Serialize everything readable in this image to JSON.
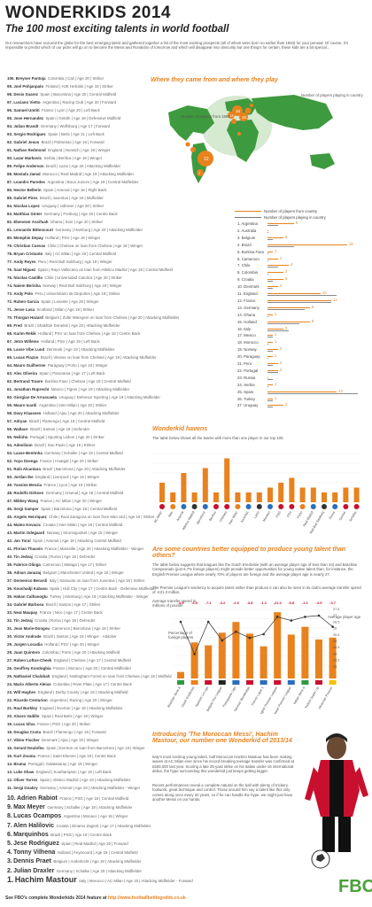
{
  "header": {
    "title": "WONDERKIDS 2014",
    "subtitle": "The 100 most exciting talents in world football",
    "intro": "Our researchers have scoured the globe for the best emerging talent and gathered together a list of the most exciting prospects (all of whom were born no earlier than 1993) for your perusal. Of course, it's impossible to predict which of our picks will go on to become the Messi and Ronaldos of tomorrow and which will disappear into obscurity but one thing's for certain, these kids are a bit special..."
  },
  "ranking": [
    {
      "rank": "100.",
      "name": "Breyner Pantoja",
      "det": "Colombia | Cali | Age 20 | Striker"
    },
    {
      "rank": "99.",
      "name": "Joel Pohjanpalo",
      "det": "Finland | HJK Helsinki | Age 19 | Striker"
    },
    {
      "rank": "98.",
      "name": "Denis Suarez",
      "det": "Spain | Barcelona | Age 20 | Central Midfield"
    },
    {
      "rank": "97.",
      "name": "Luciano Vietto",
      "det": "Argentina | Racing Club | Age 20 | Forward"
    },
    {
      "rank": "96.",
      "name": "Samuel Umtiti",
      "det": "France | Lyon | Age 20 | Left Back"
    },
    {
      "rank": "95.",
      "name": "Jose Hernandez",
      "det": "Spain | Getafe | Age 19 | Defensive Midfield"
    },
    {
      "rank": "94.",
      "name": "Julian Brandt",
      "det": "Germany | Wolfsburg | Age 17 | Forward"
    },
    {
      "rank": "93.",
      "name": "Sergio Rodriguez",
      "det": "Spain | Betis | Age 21 | Left Back"
    },
    {
      "rank": "92.",
      "name": "Gabriel Jesus",
      "det": "Brazil | Palmeiras | Age 16 | Forward"
    },
    {
      "rank": "91.",
      "name": "Nathan Redmond",
      "det": "England | Norwich | Age 19 | Winger"
    },
    {
      "rank": "90.",
      "name": "Lazar Markovic",
      "det": "Serbia | Benfica | Age 19 | Winger"
    },
    {
      "rank": "89.",
      "name": "Felipe Anderson",
      "det": "Brazil | Lazio | Age 20 | Attacking Midfielder"
    },
    {
      "rank": "88.",
      "name": "Mostafa Jamal",
      "det": "Morocco | Real Madrid | Age 19 | Attacking Midfielder"
    },
    {
      "rank": "87.",
      "name": "Leandro Paredes",
      "det": "Argentina | Boca Juniors | Age 19 | Central Midfielder"
    },
    {
      "rank": "86.",
      "name": "Hector Bellerin",
      "det": "Spain | Arsenal | Age 18 | Right Back"
    },
    {
      "rank": "85.",
      "name": "Gabriel Pires",
      "det": "Brazil | Juventus | Age 19 | Midfielder"
    },
    {
      "rank": "84.",
      "name": "Nicolas Lopez",
      "det": "Uruguay | Udinese | Age 20 | Striker"
    },
    {
      "rank": "83.",
      "name": "Matthias Ginter",
      "det": "Germany | Freiburg | Age 19 | Centre Back"
    },
    {
      "rank": "82.",
      "name": "Ebenezer Assifuah",
      "det": "Ghana | Sion | Age 20 | Striker"
    },
    {
      "rank": "81.",
      "name": "Leonardo Bittencourt",
      "det": "Germany | Hamburg | Age 20 | Attacking Midfielder"
    },
    {
      "rank": "80.",
      "name": "Memphis Depay",
      "det": "Holland | PSV | Age 19 | Winger"
    },
    {
      "rank": "79.",
      "name": "Christian Cuevas",
      "det": "Chile | Chelsea on loan from Chelsea | Age 18 | Winger"
    },
    {
      "rank": "78.",
      "name": "Bryan Cristante",
      "det": "Italy | AC Milan | Age 19 | Central Midfield"
    },
    {
      "rank": "77.",
      "name": "Andy Reyes",
      "det": "Peru | Real Bull Salzburg | Age 19 | Winger"
    },
    {
      "rank": "76.",
      "name": "Saul Niguez",
      "det": "Spain | Rayo Vallecano on loan from Atletico Madrid | Age 19 | Central Midfield"
    },
    {
      "rank": "75.",
      "name": "Nicolas Castillo",
      "det": "Chile | Universidad Catolica | Age 20 | Striker"
    },
    {
      "rank": "74.",
      "name": "Naiem Berisha",
      "det": "Norway | Real Bull Salzburg | Age 19 | Winger"
    },
    {
      "rank": "73.",
      "name": "Andy Polo",
      "det": "Peru | Universitario de Deportes | Age 19 | Striker"
    },
    {
      "rank": "72.",
      "name": "Ruben Garcia",
      "det": "Spain | Levante | Age 20 | Winger"
    },
    {
      "rank": "71.",
      "name": "Jesse Lusa",
      "det": "Scotland | Milan | Age 19 | Striker"
    },
    {
      "rank": "70.",
      "name": "Thorgan Hazard",
      "det": "Belgium | Zulte Waregem on loan from Chelsea | Age 20 | Attacking Midfielder"
    },
    {
      "rank": "69.",
      "name": "Fred",
      "det": "Brazil | Shakhtar Donetsk | Age 20 | Attacking Midfielder"
    },
    {
      "rank": "68.",
      "name": "Karim Rekik",
      "det": "Holland | PSV on loan from Chelsea | Age 18 | Centre Back"
    },
    {
      "rank": "67.",
      "name": "Jetro Willems",
      "det": "Holland | PSV | Age 19 | Left Back"
    },
    {
      "rank": "66.",
      "name": "Lasse Vibe Lund",
      "det": "Denmark | Age 19 | Attacking Midfielder"
    },
    {
      "rank": "65.",
      "name": "Lucas Piazon",
      "det": "Brazil | Vitesse on loan from Chelsea | Age 19 | Attacking Midfielder"
    },
    {
      "rank": "64.",
      "name": "Mauro Guilherme",
      "det": "Paraguay | Porto | Age 19 | Winger"
    },
    {
      "rank": "63.",
      "name": "Alex Oliveira",
      "det": "Spain | Panorama | Age 17 | Left Back"
    },
    {
      "rank": "62.",
      "name": "Bertrand Traore",
      "det": "Burkina Faso | Chelsea | Age 18 | Central Midfield"
    },
    {
      "rank": "61.",
      "name": "Jonathan Ruprecht",
      "det": "Mexico | Tigres | Age 19 | Attacking Midfielder"
    },
    {
      "rank": "60.",
      "name": "Giorgian De Arrascaeta",
      "det": "Uruguay | Defensor Sporting | Age 19 | Attacking Midfielder"
    },
    {
      "rank": "59.",
      "name": "Mauro Icardi",
      "det": "Argentina | Inter Milan | Age 20 | Striker"
    },
    {
      "rank": "58.",
      "name": "Davy Klaassen",
      "det": "Holland | Ajax | Age 20 | Attacking Midfielder"
    },
    {
      "rank": "57.",
      "name": "Adryan",
      "det": "Brazil | Flamengo | Age 19 | Central Midfield"
    },
    {
      "rank": "56.",
      "name": "Wallace",
      "det": "Brazil | Santos | Age 19 | Defender"
    },
    {
      "rank": "55.",
      "name": "Neilnho",
      "det": "Portugal | Sporting Lisbon | Age 20 | Striker"
    },
    {
      "rank": "54.",
      "name": "Adenilson",
      "det": "Brazil | Sao Paulo | Age 19 | Striker"
    },
    {
      "rank": "53.",
      "name": "Lasse Benitnha",
      "det": "Germany | Schalke | Age 19 | Central Midfield"
    },
    {
      "rank": "52.",
      "name": "Yoyo Dzenga",
      "det": "France | Hoatgal | Age 20 | Striker"
    },
    {
      "rank": "51.",
      "name": "Rafa Alcantara",
      "det": "Brazil | Barcelona | Age 20 | Attacking Midfielder"
    },
    {
      "rank": "50.",
      "name": "Jordan Ibe",
      "det": "England | Liverpool | Age 18 | Winger"
    },
    {
      "rank": "49.",
      "name": "Yassine Benzia",
      "det": "France | Lyon | Age 19 | Striker"
    },
    {
      "rank": "48.",
      "name": "Rodolfo Dirksen",
      "det": "Germany | Arsenal | Age 18 | Central Midfield"
    },
    {
      "rank": "47.",
      "name": "Mikkey Wang",
      "det": "France | AC Milan | Age 20 | Winger"
    },
    {
      "rank": "46.",
      "name": "Sergi Samper",
      "det": "Spain | Barcelona | Age 18 | Central Midfield"
    },
    {
      "rank": "45.",
      "name": "Angelo Henriquez",
      "det": "Chile | Real Zaragoza on loan from Man Utd | Age 19 | Striker"
    },
    {
      "rank": "44.",
      "name": "Mateo Kovacic",
      "det": "Croatia | Inter Milan | Age 19 | Central Midfield"
    },
    {
      "rank": "43.",
      "name": "Martin Odegaard",
      "det": "Norway | Stromsgodset | Age 15 | Winger"
    },
    {
      "rank": "42.",
      "name": "Jan Toral",
      "det": "Spain | Arsenal | Age 18 | Attacking Central Midfield"
    },
    {
      "rank": "41.",
      "name": "Florian Thauvin",
      "det": "France | Marseille | Age 20 | Attacking Midfielder - Winger"
    },
    {
      "rank": "40.",
      "name": "Tin Jedvaj",
      "det": "Croatia | Roma | Age 18 | Defender"
    },
    {
      "rank": "39.",
      "name": "Fabrice Olinga",
      "det": "Cameroon | Malaga | Age 17 | Striker"
    },
    {
      "rank": "38.",
      "name": "Adnan Januzaj",
      "det": "Belgium | Manchester United | Age 18 | Winger"
    },
    {
      "rank": "37.",
      "name": "Domenico Berardi",
      "det": "Italy | Sassuolo on loan from Juventus | Age 19 | Striker"
    },
    {
      "rank": "36.",
      "name": "Kouchadji Kabasu",
      "det": "Spain | Hull City | Age 17 | Centre Back - Defensive Midfielder"
    },
    {
      "rank": "35.",
      "name": "Hakan Calhanoglu",
      "det": "Turkey | Hamburg | Age 19 | Attacking Midfielder - Winger"
    },
    {
      "rank": "34.",
      "name": "Gabriel Barbosa",
      "det": "Brazil | Santos | Age 17 | Striker"
    },
    {
      "rank": "33.",
      "name": "Neal Maupay",
      "det": "France | Nice | Age 17 | Centre Back"
    },
    {
      "rank": "32.",
      "name": "Tin Jedvaj",
      "det": "Croatia | Roma | Age 18 | Defender"
    },
    {
      "rank": "31.",
      "name": "Jean Marie-Dongou",
      "det": "Cameroon | Barcelona | Age 18 | Striker"
    },
    {
      "rank": "30.",
      "name": "Victor Andrade",
      "det": "Brazil | Santos | Age 18 | Winger - Attacker"
    },
    {
      "rank": "29.",
      "name": "Jurgen Locadia",
      "det": "Holland | PSV | Age 20 | Winger"
    },
    {
      "rank": "28.",
      "name": "Juan Quintero",
      "det": "Colombia | Porto | Age 20 | Attacking Midfield"
    },
    {
      "rank": "27.",
      "name": "Ruben Loftus-Cheek",
      "det": "England | Chelsea | Age 17 | Central Midfield"
    },
    {
      "rank": "26.",
      "name": "Geoffrey Kondogbia",
      "det": "France | Monaco | Age 20 | Central Midfielder"
    },
    {
      "rank": "25.",
      "name": "Nathaniel Chalobah",
      "det": "England | Nottingham Forest on loan from Chelsea | Age 19 | Midfield"
    },
    {
      "rank": "24.",
      "name": "Mario Alberto Aleixo",
      "det": "Colombia | River Plate | Age 17 | Centre Back"
    },
    {
      "rank": "23.",
      "name": "Will Hughes",
      "det": "England | Derby County | Age 18 | Attacking Midfield"
    },
    {
      "rank": "22.",
      "name": "Ricardo Centurion",
      "det": "Argentina | Racing | Age 20 | Winger"
    },
    {
      "rank": "21.",
      "name": "Raul Borkley",
      "det": "England | Everton | Age 19 | Attacking Midfielder"
    },
    {
      "rank": "20.",
      "name": "Alvaro Vadillo",
      "det": "Spain | Real Betis | Age 19 | Winger"
    },
    {
      "rank": "19.",
      "name": "Lucas Silva",
      "det": "France | PSG | Age 20 | Striker"
    },
    {
      "rank": "18.",
      "name": "Douglas Costa",
      "det": "Brazil | Flamengo | Age 19 | Forward"
    },
    {
      "rank": "17.",
      "name": "Viktor Fischer",
      "det": "Denmark | Ajax | Age 19 | Winger"
    },
    {
      "rank": "16.",
      "name": "Gerard Deulofeu",
      "det": "Spain | Everton on loan from Barcelona | Age 19 | Winger"
    },
    {
      "rank": "15.",
      "name": "Kurt Zouma",
      "det": "France | Saint Etienne | Age 19 | Centre Back"
    },
    {
      "rank": "14.",
      "name": "Bruma",
      "det": "Portugal | Galatasaray | Age 19 | Winger"
    },
    {
      "rank": "13.",
      "name": "Luke Shaw",
      "det": "England | Southampton | Age 18 | Left Back"
    },
    {
      "rank": "12.",
      "name": "Oliver Torres",
      "det": "Spain | Atletico Madrid | Age 19 | Attacking Midfielder"
    },
    {
      "rank": "11.",
      "name": "Sergi Gnabry",
      "det": "Germany | Arsenal | Age 18 | Attacking Midfielder - Winger"
    }
  ],
  "top_ten": [
    {
      "rank": "10.",
      "name": "Adrien Rabiot",
      "det": "France | PSG | Age 18 | Central Midfield"
    },
    {
      "rank": "9.",
      "name": "Max Meyer",
      "det": "Germany | Schalke | Age 18 | Attacking Midfielder"
    },
    {
      "rank": "8.",
      "name": "Lucas Ocampos",
      "det": "Argentina | Monaco | Age 19 | Winger"
    },
    {
      "rank": "7.",
      "name": "Alen Halilovic",
      "det": "Croatia | Dinamo Zagreb | Age 17 | Attacking Midfielder"
    },
    {
      "rank": "6.",
      "name": "Marquinhos",
      "det": "Brazil | PSG | Age 19 | Centre Back"
    },
    {
      "rank": "5.",
      "name": "Jese Rodriguez",
      "det": "Spain | Real Madrid | Age 20 | Forward"
    },
    {
      "rank": "4.",
      "name": "Tonny Vilhena",
      "det": "Holland | Feyenoord | Age 18 | Central Midfield"
    },
    {
      "rank": "3.",
      "name": "Dennis Praet",
      "det": "Belgium | Anderlecht | Age 19 | Attacking Midfielder"
    },
    {
      "rank": "2.",
      "name": "Julian Draxler",
      "det": "Germany | Schalke | Age 20 | Attacking Midfielder"
    }
  ],
  "number_one": {
    "rank": "1.",
    "name": "Hachim Mastour",
    "det": "Italy | Morocco | AC Milan | Age 15 | Attacking Midfielder - Forward"
  },
  "map_section": {
    "title": "Where they came from and where they play",
    "legend_from": "Number of players from country",
    "legend_in": "Number of players playing in country",
    "map_legend_1": "Number of players from 1993",
    "map_legend_2": "Number of players playing in country",
    "map_numbers": [
      "16",
      "13",
      "15",
      "12",
      "7",
      "6",
      "5",
      "3",
      "2"
    ]
  },
  "country_chart": {
    "countries": [
      "1. Argentina",
      "2. Australia",
      "3. Belgium",
      "4. Brazil",
      "5. Burkina Faso",
      "6. Cameroon",
      "7. Chile",
      "8. Colombia",
      "9. Croatia",
      "10. Denmark",
      "11. England",
      "12. France",
      "13. Germany",
      "14. Ghana",
      "15. Holland",
      "16. Italy",
      "17. Mexico",
      "18. Morocco",
      "19. Norway",
      "20. Paraguay",
      "21. Peru",
      "22. Portugal",
      "23. Russia",
      "24. Serbia",
      "25. Spain",
      "26. Turkey",
      "27. Uruguay"
    ],
    "from": [
      5,
      0,
      3,
      15,
      1,
      2,
      4,
      3,
      3,
      2,
      10,
      12,
      8,
      1,
      8,
      3,
      1,
      1,
      2,
      1,
      2,
      2,
      0,
      1,
      13,
      1,
      3
    ],
    "in": [
      2,
      0,
      1,
      5,
      0,
      0,
      2,
      0,
      1,
      1,
      13,
      12,
      7,
      0,
      6,
      4,
      1,
      0,
      1,
      0,
      1,
      2,
      1,
      0,
      17,
      1,
      1
    ]
  },
  "homes_section": {
    "title": "Wonderkid havens",
    "text": "The table below shows all the teams with more than one player in our top 100.",
    "teams": [
      "AC Milan",
      "Ajax",
      "Arsenal",
      "Atletico Madrid",
      "Barcelona",
      "Benfica",
      "Chelsea",
      "Inter Milan",
      "Juventus",
      "Lazio",
      "Monaco",
      "PSG",
      "PSV",
      "Porto",
      "Real Madrid",
      "Red Bull Salzburg",
      "Roma",
      "Santos",
      "Schalke"
    ],
    "values": [
      4,
      2,
      6,
      2,
      7,
      2,
      9,
      2,
      2,
      2,
      3,
      4,
      5,
      3,
      3,
      2,
      2,
      3,
      3
    ]
  },
  "spend_section": {
    "title": "Are some countries better equipped to produce young talent than others?",
    "text1": "The table below suggests that leagues like the Dutch Eredivisie (with an average player age of less than 24) and Brazilian Campeonato (just 6.7% foreign players) might provide better opportunities for young native talent than, for instance, the English Premier League where nearly 70% of players are foreign and the average player age is nearly 27.",
    "text2": "The Premier League's tendency to acquire talent rather than produce it can also be seen in its club's average transfer spend of -£21.3 million.",
    "ylabel_left": "Average transfer spend in millions of pounds",
    "legend_foreign": "Percentage of foreign players",
    "legend_age": "Average player age",
    "spend_values": [
      "-3.8",
      "-6.5",
      "-7.1",
      "-3.2",
      "-2.6",
      "-3.8",
      "-1.1",
      "-21.3",
      "-5.8",
      "-1.1",
      "-3.5",
      "-0.7"
    ],
    "leagues": [
      "Brazilian Serie A",
      "Dutch Eredivisie",
      "Spanish La Liga",
      "Belgian Pro League",
      "Portuguese Liga",
      "German Bundesliga",
      "French Ligue 1",
      "English Premier League",
      "Russian Premier League",
      "Italian Serie A",
      "Turkish Super Lig",
      "Ukrainian Premier"
    ],
    "foreign_pct": [
      6.7,
      37,
      34,
      47,
      58,
      46,
      33,
      68,
      45,
      53,
      40,
      42
    ],
    "avg_age": [
      26.5,
      23.9,
      26.5,
      25.0,
      25.7,
      25.2,
      25.5,
      26.9,
      26.6,
      26.9,
      27.0,
      26.1
    ],
    "right_ticks": [
      "27.5",
      "27",
      "26.5",
      "26",
      "25.5",
      "25",
      "24.5",
      "24",
      "23.5",
      "23"
    ]
  },
  "feature": {
    "title": "Introducing 'The Moroccan Messi', Hachim Mastour, our number one Wonderkid of 2013/14",
    "text1": "Italy's most exciting young talent, half Moroccan Hachim Mastour has been making waves at AC Milan ever since his record breaking teenage transfer was confirmed at £500,000 last year. Scoring a late 25-yard strike on his Italian under-16 international debut, the hype surrounding this wonderkid just keeps getting bigger.",
    "text2": "Recent performances reveal a complete natural on the ball with plenty of trickery, footwork, great technique and control. Those around him say a talent like this only comes along once every 20 years, so if he can handle the hype, we might just have another Messi on our hands."
  },
  "footer": {
    "text": "See FBO's complete Wonderkids 2014 feature at",
    "link": "http://www.footballbettingodds.co.uk",
    "logo": "FBO"
  },
  "colors": {
    "accent": "#e8821e",
    "map_land": "#3e9a3e",
    "map_ocean": "#d6e9d1",
    "logo": "#4aa03a"
  }
}
